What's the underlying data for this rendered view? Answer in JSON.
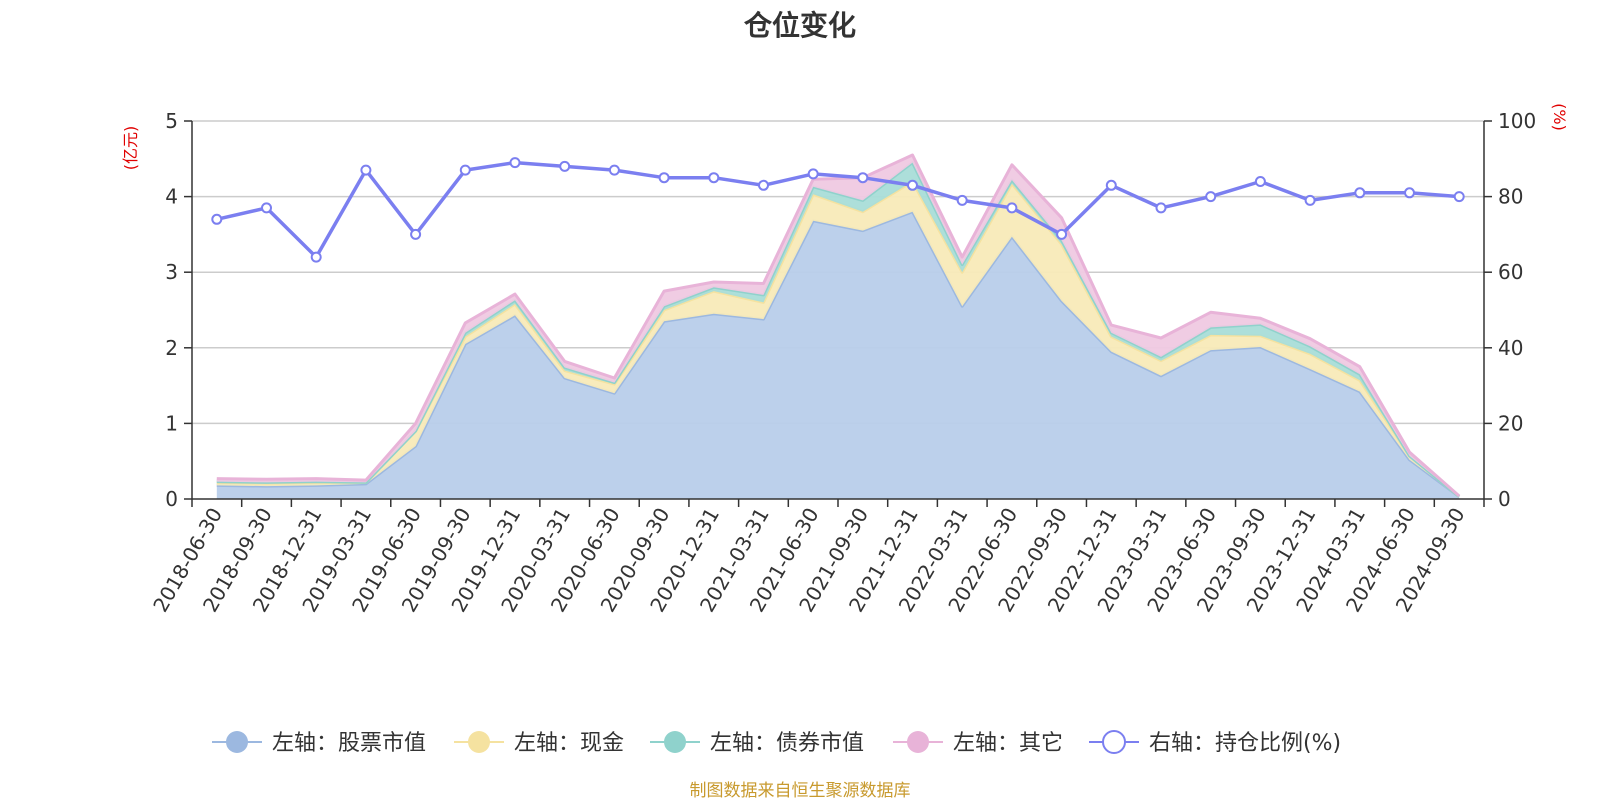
{
  "chart_data": {
    "type": "area",
    "title": "仓位变化",
    "left_axis": {
      "unit": "(亿元)",
      "ylim": [
        0,
        5
      ],
      "ticks": [
        0,
        1,
        2,
        3,
        4,
        5
      ]
    },
    "right_axis": {
      "unit": "(%)",
      "ylim": [
        0,
        100
      ],
      "ticks": [
        0,
        20,
        40,
        60,
        80,
        100
      ]
    },
    "grid": true,
    "legend_position": "bottom",
    "categories": [
      "2018-06-30",
      "2018-09-30",
      "2018-12-31",
      "2019-03-31",
      "2019-06-30",
      "2019-09-30",
      "2019-12-31",
      "2020-03-31",
      "2020-06-30",
      "2020-09-30",
      "2020-12-31",
      "2021-03-31",
      "2021-06-30",
      "2021-09-30",
      "2021-12-31",
      "2022-03-31",
      "2022-06-30",
      "2022-09-30",
      "2022-12-31",
      "2023-03-31",
      "2023-06-30",
      "2023-09-30",
      "2023-12-31",
      "2024-03-31",
      "2024-06-30",
      "2024-09-30"
    ],
    "series": [
      {
        "name": "左轴：股票市值",
        "axis": "left",
        "type": "area",
        "color": "#9cb8e0",
        "fill": "#b8cdea",
        "values": [
          0.18,
          0.17,
          0.18,
          0.2,
          0.7,
          2.05,
          2.43,
          1.6,
          1.4,
          2.35,
          2.45,
          2.38,
          3.68,
          3.55,
          3.8,
          2.55,
          3.47,
          2.62,
          1.95,
          1.63,
          1.97,
          2.01,
          1.72,
          1.42,
          0.52,
          0.03
        ]
      },
      {
        "name": "左轴：现金",
        "axis": "left",
        "type": "area",
        "color": "#f5e2a0",
        "fill": "#f8eab8",
        "values": [
          0.04,
          0.04,
          0.04,
          0.02,
          0.2,
          0.1,
          0.15,
          0.1,
          0.12,
          0.15,
          0.3,
          0.22,
          0.35,
          0.25,
          0.4,
          0.45,
          0.7,
          0.75,
          0.2,
          0.2,
          0.2,
          0.15,
          0.2,
          0.15,
          0.05,
          0.0
        ]
      },
      {
        "name": "左轴：债券市值",
        "axis": "left",
        "type": "area",
        "color": "#8fd2cc",
        "fill": "#a9ddd8",
        "values": [
          0.01,
          0.01,
          0.01,
          0.0,
          0.0,
          0.05,
          0.05,
          0.04,
          0.02,
          0.05,
          0.05,
          0.1,
          0.1,
          0.15,
          0.25,
          0.1,
          0.05,
          0.05,
          0.05,
          0.05,
          0.1,
          0.15,
          0.1,
          0.08,
          0.0,
          0.0
        ]
      },
      {
        "name": "左轴：其它",
        "axis": "left",
        "type": "area",
        "color": "#e8b3d8",
        "fill": "#efc9e2",
        "values": [
          0.04,
          0.04,
          0.04,
          0.03,
          0.1,
          0.13,
          0.08,
          0.08,
          0.06,
          0.2,
          0.07,
          0.15,
          0.1,
          0.3,
          0.1,
          0.1,
          0.2,
          0.3,
          0.1,
          0.25,
          0.2,
          0.08,
          0.1,
          0.1,
          0.05,
          0.01
        ]
      },
      {
        "name": "右轴：持仓比例(%)",
        "axis": "right",
        "type": "line",
        "color": "#7b7ff0",
        "values": [
          74,
          77,
          64,
          87,
          70,
          87,
          89,
          88,
          87,
          85,
          85,
          83,
          86,
          85,
          83,
          79,
          77,
          70,
          83,
          77,
          80,
          84,
          79,
          81,
          81,
          80
        ]
      }
    ]
  },
  "source_note": "制图数据来自恒生聚源数据库"
}
